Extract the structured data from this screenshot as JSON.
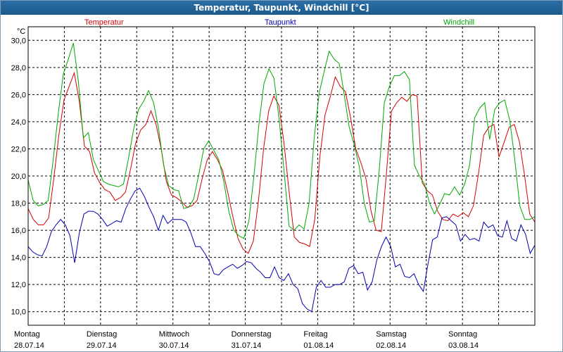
{
  "window": {
    "title": "Temperatur, Taupunkt, Windchill [°C]"
  },
  "colors": {
    "temperatur": "#d40000",
    "taupunkt": "#0000b4",
    "windchill": "#00a800",
    "grid": "#000000"
  },
  "chart_data": {
    "type": "line",
    "title": "Temperatur, Taupunkt, Windchill [°C]",
    "ylabel": "°C",
    "ylim": [
      9.0,
      31.0
    ],
    "yticks": [
      "10,0",
      "12,0",
      "14,0",
      "16,0",
      "18,0",
      "20,0",
      "22,0",
      "24,0",
      "26,0",
      "28,0",
      "30,0"
    ],
    "ytick_values": [
      10,
      12,
      14,
      16,
      18,
      20,
      22,
      24,
      26,
      28,
      30
    ],
    "xlim": [
      0,
      7
    ],
    "x_step_days": 0.0833,
    "day_ticks": [
      {
        "day": "Montag",
        "date": "28.07.14"
      },
      {
        "day": "Dienstag",
        "date": "29.07.14"
      },
      {
        "day": "Mittwoch",
        "date": "30.07.14"
      },
      {
        "day": "Donnerstag",
        "date": "31.07.14"
      },
      {
        "day": "Freitag",
        "date": "01.08.14"
      },
      {
        "day": "Samstag",
        "date": "02.08.14"
      },
      {
        "day": "Sonntag",
        "date": "03.08.14"
      }
    ],
    "grid": true,
    "legend": "top",
    "series": [
      {
        "name": "Temperatur",
        "key": "temperatur",
        "values": [
          17.6,
          16.8,
          16.4,
          16.4,
          16.9,
          19.8,
          23.0,
          25.6,
          26.6,
          27.6,
          25.5,
          22.2,
          21.8,
          20.2,
          19.5,
          19.0,
          18.8,
          18.2,
          18.4,
          18.8,
          20.5,
          22.4,
          23.4,
          23.8,
          24.8,
          23.8,
          22.0,
          19.6,
          18.6,
          18.4,
          18.1,
          17.7,
          17.8,
          18.2,
          19.8,
          21.2,
          21.8,
          21.2,
          20.4,
          18.8,
          17.0,
          15.4,
          14.6,
          14.3,
          15.2,
          18.2,
          22.0,
          24.8,
          25.9,
          25.2,
          22.4,
          18.8,
          15.5,
          15.1,
          15.0,
          14.8,
          16.8,
          21.4,
          24.5,
          25.8,
          27.3,
          26.6,
          26.2,
          24.3,
          22.0,
          21.0,
          19.8,
          17.4,
          16.0,
          15.9,
          20.2,
          24.8,
          25.4,
          25.8,
          25.5,
          26.0,
          25.9,
          19.5,
          18.9,
          18.6,
          17.4,
          16.8,
          16.7,
          17.2,
          17.0,
          17.3,
          17.0,
          17.8,
          20.2,
          23.0,
          23.6,
          23.8,
          21.4,
          22.5,
          23.6,
          23.8,
          22.5,
          20.0,
          17.2,
          16.6
        ]
      },
      {
        "name": "Taupunkt",
        "key": "taupunkt",
        "values": [
          14.8,
          14.4,
          14.2,
          14.1,
          14.8,
          15.9,
          16.4,
          16.8,
          16.4,
          15.6,
          13.6,
          15.8,
          17.2,
          17.4,
          17.4,
          17.2,
          16.8,
          16.3,
          16.5,
          16.7,
          16.6,
          17.6,
          18.3,
          18.9,
          19.1,
          18.5,
          17.7,
          17.0,
          16.0,
          17.1,
          16.5,
          16.8,
          16.8,
          16.8,
          16.6,
          15.8,
          14.8,
          14.8,
          14.3,
          13.7,
          12.8,
          12.7,
          13.1,
          13.3,
          13.5,
          13.2,
          13.4,
          13.7,
          13.6,
          13.2,
          12.9,
          12.5,
          12.5,
          13.3,
          12.5,
          12.3,
          12.8,
          12.0,
          11.7,
          10.6,
          10.2,
          10.0,
          11.8,
          12.3,
          11.8,
          11.8,
          12.0,
          12.0,
          12.2,
          13.2,
          13.4,
          12.8,
          12.9,
          11.6,
          12.2,
          13.8,
          14.8,
          15.5,
          14.8,
          13.3,
          13.5,
          12.6,
          12.5,
          12.8,
          12.0,
          11.5,
          13.5,
          15.3,
          15.5,
          16.9,
          17.0,
          16.7,
          16.4,
          15.2,
          15.7,
          15.3,
          15.4,
          15.2,
          16.6,
          16.2,
          16.4,
          15.6,
          15.5,
          16.7,
          15.4,
          15.2,
          16.4,
          15.7,
          14.3,
          14.9
        ]
      },
      {
        "name": "Windchill",
        "key": "windchill",
        "values": [
          19.7,
          18.2,
          17.8,
          17.9,
          18.2,
          21.2,
          24.6,
          27.5,
          28.6,
          29.8,
          27.0,
          22.8,
          23.2,
          21.2,
          20.4,
          19.6,
          19.4,
          19.3,
          19.2,
          19.4,
          21.3,
          23.4,
          24.9,
          25.5,
          26.3,
          25.4,
          23.5,
          20.8,
          19.3,
          19.0,
          18.9,
          17.6,
          17.7,
          18.3,
          20.1,
          22.0,
          22.6,
          21.9,
          21.2,
          19.6,
          17.4,
          16.0,
          15.6,
          15.4,
          16.7,
          20.0,
          23.8,
          26.8,
          27.9,
          27.2,
          24.3,
          20.4,
          16.3,
          16.0,
          16.4,
          16.1,
          18.0,
          22.7,
          26.1,
          27.7,
          29.2,
          28.6,
          28.3,
          26.0,
          23.6,
          22.3,
          20.7,
          18.0,
          16.6,
          16.7,
          20.5,
          25.4,
          26.6,
          27.4,
          27.4,
          27.7,
          27.1,
          20.8,
          20.0,
          19.4,
          18.0,
          17.2,
          17.9,
          18.7,
          18.6,
          19.2,
          18.6,
          19.4,
          20.8,
          24.3,
          25.0,
          25.4,
          22.7,
          24.9,
          25.4,
          25.6,
          24.1,
          21.2,
          17.8,
          16.8,
          16.8,
          17.0
        ]
      }
    ]
  }
}
